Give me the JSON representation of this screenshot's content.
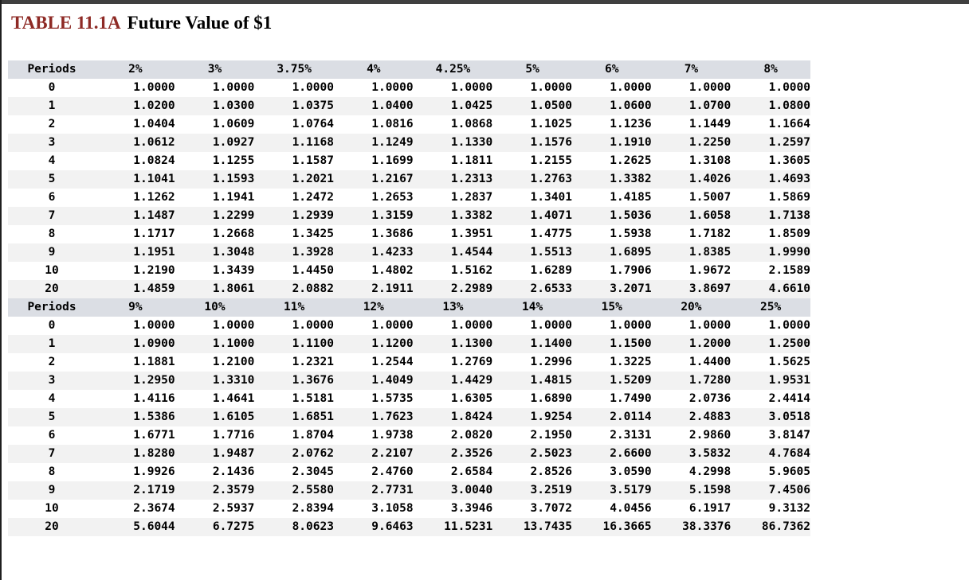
{
  "page": {
    "title_label": "TABLE 11.1A",
    "title_text": "Future Value of $1"
  },
  "colors": {
    "title_label": "#8e2a25",
    "header_bg": "#dbdee4",
    "stripe_bg": "#f2f2f2",
    "top_bar": "#3f3f3f",
    "left_strip": "#1f1f1f"
  },
  "table": {
    "period_header": "Periods",
    "sections": [
      {
        "columns": [
          "2%",
          "3%",
          "3.75%",
          "4%",
          "4.25%",
          "5%",
          "6%",
          "7%",
          "8%"
        ],
        "rows": [
          {
            "period": "0",
            "values": [
              "1.0000",
              "1.0000",
              "1.0000",
              "1.0000",
              "1.0000",
              "1.0000",
              "1.0000",
              "1.0000",
              "1.0000"
            ]
          },
          {
            "period": "1",
            "values": [
              "1.0200",
              "1.0300",
              "1.0375",
              "1.0400",
              "1.0425",
              "1.0500",
              "1.0600",
              "1.0700",
              "1.0800"
            ]
          },
          {
            "period": "2",
            "values": [
              "1.0404",
              "1.0609",
              "1.0764",
              "1.0816",
              "1.0868",
              "1.1025",
              "1.1236",
              "1.1449",
              "1.1664"
            ]
          },
          {
            "period": "3",
            "values": [
              "1.0612",
              "1.0927",
              "1.1168",
              "1.1249",
              "1.1330",
              "1.1576",
              "1.1910",
              "1.2250",
              "1.2597"
            ]
          },
          {
            "period": "4",
            "values": [
              "1.0824",
              "1.1255",
              "1.1587",
              "1.1699",
              "1.1811",
              "1.2155",
              "1.2625",
              "1.3108",
              "1.3605"
            ]
          },
          {
            "period": "5",
            "values": [
              "1.1041",
              "1.1593",
              "1.2021",
              "1.2167",
              "1.2313",
              "1.2763",
              "1.3382",
              "1.4026",
              "1.4693"
            ]
          },
          {
            "period": "6",
            "values": [
              "1.1262",
              "1.1941",
              "1.2472",
              "1.2653",
              "1.2837",
              "1.3401",
              "1.4185",
              "1.5007",
              "1.5869"
            ]
          },
          {
            "period": "7",
            "values": [
              "1.1487",
              "1.2299",
              "1.2939",
              "1.3159",
              "1.3382",
              "1.4071",
              "1.5036",
              "1.6058",
              "1.7138"
            ]
          },
          {
            "period": "8",
            "values": [
              "1.1717",
              "1.2668",
              "1.3425",
              "1.3686",
              "1.3951",
              "1.4775",
              "1.5938",
              "1.7182",
              "1.8509"
            ]
          },
          {
            "period": "9",
            "values": [
              "1.1951",
              "1.3048",
              "1.3928",
              "1.4233",
              "1.4544",
              "1.5513",
              "1.6895",
              "1.8385",
              "1.9990"
            ]
          },
          {
            "period": "10",
            "values": [
              "1.2190",
              "1.3439",
              "1.4450",
              "1.4802",
              "1.5162",
              "1.6289",
              "1.7906",
              "1.9672",
              "2.1589"
            ]
          },
          {
            "period": "20",
            "values": [
              "1.4859",
              "1.8061",
              "2.0882",
              "2.1911",
              "2.2989",
              "2.6533",
              "3.2071",
              "3.8697",
              "4.6610"
            ]
          }
        ]
      },
      {
        "columns": [
          "9%",
          "10%",
          "11%",
          "12%",
          "13%",
          "14%",
          "15%",
          "20%",
          "25%"
        ],
        "rows": [
          {
            "period": "0",
            "values": [
              "1.0000",
              "1.0000",
              "1.0000",
              "1.0000",
              "1.0000",
              "1.0000",
              "1.0000",
              "1.0000",
              "1.0000"
            ]
          },
          {
            "period": "1",
            "values": [
              "1.0900",
              "1.1000",
              "1.1100",
              "1.1200",
              "1.1300",
              "1.1400",
              "1.1500",
              "1.2000",
              "1.2500"
            ]
          },
          {
            "period": "2",
            "values": [
              "1.1881",
              "1.2100",
              "1.2321",
              "1.2544",
              "1.2769",
              "1.2996",
              "1.3225",
              "1.4400",
              "1.5625"
            ]
          },
          {
            "period": "3",
            "values": [
              "1.2950",
              "1.3310",
              "1.3676",
              "1.4049",
              "1.4429",
              "1.4815",
              "1.5209",
              "1.7280",
              "1.9531"
            ]
          },
          {
            "period": "4",
            "values": [
              "1.4116",
              "1.4641",
              "1.5181",
              "1.5735",
              "1.6305",
              "1.6890",
              "1.7490",
              "2.0736",
              "2.4414"
            ]
          },
          {
            "period": "5",
            "values": [
              "1.5386",
              "1.6105",
              "1.6851",
              "1.7623",
              "1.8424",
              "1.9254",
              "2.0114",
              "2.4883",
              "3.0518"
            ]
          },
          {
            "period": "6",
            "values": [
              "1.6771",
              "1.7716",
              "1.8704",
              "1.9738",
              "2.0820",
              "2.1950",
              "2.3131",
              "2.9860",
              "3.8147"
            ]
          },
          {
            "period": "7",
            "values": [
              "1.8280",
              "1.9487",
              "2.0762",
              "2.2107",
              "2.3526",
              "2.5023",
              "2.6600",
              "3.5832",
              "4.7684"
            ]
          },
          {
            "period": "8",
            "values": [
              "1.9926",
              "2.1436",
              "2.3045",
              "2.4760",
              "2.6584",
              "2.8526",
              "3.0590",
              "4.2998",
              "5.9605"
            ]
          },
          {
            "period": "9",
            "values": [
              "2.1719",
              "2.3579",
              "2.5580",
              "2.7731",
              "3.0040",
              "3.2519",
              "3.5179",
              "5.1598",
              "7.4506"
            ]
          },
          {
            "period": "10",
            "values": [
              "2.3674",
              "2.5937",
              "2.8394",
              "3.1058",
              "3.3946",
              "3.7072",
              "4.0456",
              "6.1917",
              "9.3132"
            ]
          },
          {
            "period": "20",
            "values": [
              "5.6044",
              "6.7275",
              "8.0623",
              "9.6463",
              "11.5231",
              "13.7435",
              "16.3665",
              "38.3376",
              "86.7362"
            ]
          }
        ]
      }
    ]
  }
}
